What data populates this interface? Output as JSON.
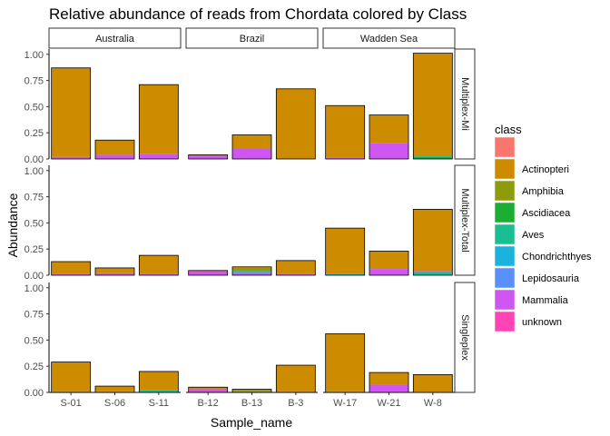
{
  "chart_data": {
    "type": "bar",
    "stacked": true,
    "title": "Relative abundance of reads from Chordata colored by Class",
    "xlabel": "Sample_name",
    "ylabel": "Abundance",
    "ylim": [
      0,
      1.05
    ],
    "yticks": [
      "0.00",
      "0.25",
      "0.50",
      "0.75",
      "1.00"
    ],
    "ytick_values": [
      0,
      0.25,
      0.5,
      0.75,
      1.0
    ],
    "grid": false,
    "legend_position": "right",
    "legend_title": "class",
    "classes": [
      {
        "name": "",
        "color": "#F8766D"
      },
      {
        "name": "Actinopteri",
        "color": "#CD8B00"
      },
      {
        "name": "Amphibia",
        "color": "#8E9B0D"
      },
      {
        "name": "Ascidiacea",
        "color": "#1CAE33"
      },
      {
        "name": "Aves",
        "color": "#1BBE92"
      },
      {
        "name": "Chondrichthyes",
        "color": "#1AB3DE"
      },
      {
        "name": "Lepidosauria",
        "color": "#5B8FF9"
      },
      {
        "name": "Mammalia",
        "color": "#D056F2"
      },
      {
        "name": "unknown",
        "color": "#FF44B5"
      }
    ],
    "columns": [
      {
        "name": "Australia",
        "samples": [
          "S-01",
          "S-06",
          "S-11"
        ]
      },
      {
        "name": "Brazil",
        "samples": [
          "B-12",
          "B-13",
          "B-3"
        ]
      },
      {
        "name": "Wadden Sea",
        "samples": [
          "W-17",
          "W-21",
          "W-8"
        ]
      }
    ],
    "rows": [
      {
        "name": "Multiplex-Mi",
        "stacks": [
          [
            [
              [
                "Mammalia",
                0.02
              ],
              [
                "Actinopteri",
                0.85
              ]
            ],
            [
              [
                "Mammalia",
                0.04
              ],
              [
                "Actinopteri",
                0.14
              ]
            ],
            [
              [
                "Mammalia",
                0.05
              ],
              [
                "Actinopteri",
                0.66
              ]
            ]
          ],
          [
            [
              [
                "Mammalia",
                0.03
              ],
              [
                "Actinopteri",
                0.01
              ]
            ],
            [
              [
                "Mammalia",
                0.1
              ],
              [
                "Actinopteri",
                0.13
              ]
            ],
            [
              [
                "Actinopteri",
                0.67
              ]
            ]
          ],
          [
            [
              [
                "Mammalia",
                0.01
              ],
              [
                "Actinopteri",
                0.5
              ]
            ],
            [
              [
                "Mammalia",
                0.15
              ],
              [
                "Actinopteri",
                0.27
              ]
            ],
            [
              [
                "Ascidiacea",
                0.02
              ],
              [
                "Aves",
                0.01
              ],
              [
                "Actinopteri",
                0.98
              ]
            ]
          ]
        ]
      },
      {
        "name": "Multiplex-Total",
        "stacks": [
          [
            [
              [
                "Mammalia",
                0.01
              ],
              [
                "Actinopteri",
                0.12
              ]
            ],
            [
              [
                "Mammalia",
                0.02
              ],
              [
                "Actinopteri",
                0.05
              ]
            ],
            [
              [
                "Mammalia",
                0.01
              ],
              [
                "Actinopteri",
                0.18
              ]
            ]
          ],
          [
            [
              [
                "Mammalia",
                0.04
              ],
              [
                "Actinopteri",
                0.005
              ]
            ],
            [
              [
                "Mammalia",
                0.02
              ],
              [
                "Lepidosauria",
                0.01
              ],
              [
                "Aves",
                0.01
              ],
              [
                "Amphibia",
                0.03
              ],
              [
                "Actinopteri",
                0.01
              ]
            ],
            [
              [
                "Mammalia",
                0.01
              ],
              [
                "Actinopteri",
                0.13
              ]
            ]
          ],
          [
            [
              [
                "Chondrichthyes",
                0.01
              ],
              [
                "Actinopteri",
                0.44
              ]
            ],
            [
              [
                "Mammalia",
                0.06
              ],
              [
                "Actinopteri",
                0.17
              ]
            ],
            [
              [
                "Aves",
                0.03
              ],
              [
                "Mammalia",
                0.01
              ],
              [
                "Actinopteri",
                0.59
              ]
            ]
          ]
        ]
      },
      {
        "name": "Singleplex",
        "stacks": [
          [
            [
              [
                "Chondrichthyes",
                0.01
              ],
              [
                "Actinopteri",
                0.28
              ]
            ],
            [
              [
                "Mammalia",
                0.01
              ],
              [
                "Actinopteri",
                0.05
              ]
            ],
            [
              [
                "Aves",
                0.02
              ],
              [
                "Actinopteri",
                0.18
              ]
            ]
          ],
          [
            [
              [
                "Mammalia",
                0.03
              ],
              [
                "Actinopteri",
                0.02
              ]
            ],
            [
              [
                "Mammalia",
                0.01
              ],
              [
                "Amphibia",
                0.02
              ]
            ],
            [
              [
                "Mammalia",
                0.01
              ],
              [
                "Actinopteri",
                0.25
              ]
            ]
          ],
          [
            [
              [
                "Aves",
                0.01
              ],
              [
                "Actinopteri",
                0.55
              ]
            ],
            [
              [
                "Mammalia",
                0.07
              ],
              [
                "Actinopteri",
                0.12
              ]
            ],
            [
              [
                "Actinopteri",
                0.17
              ]
            ]
          ]
        ]
      }
    ]
  }
}
